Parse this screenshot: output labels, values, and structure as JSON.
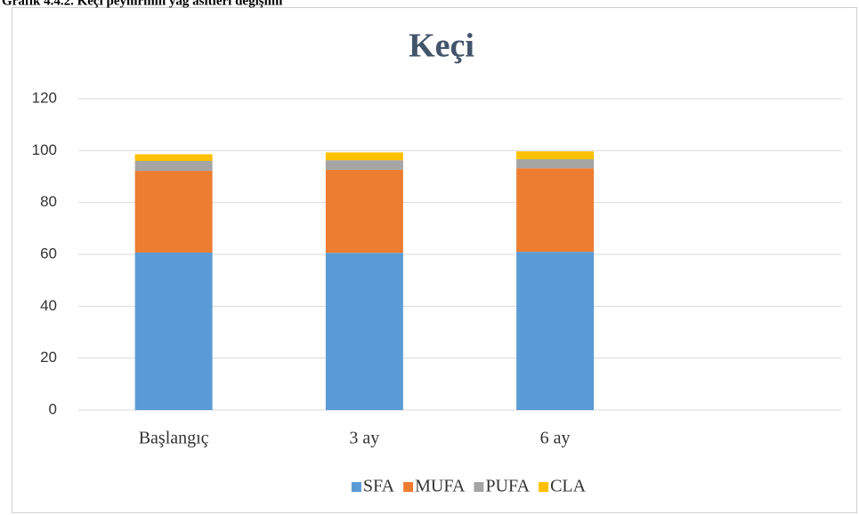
{
  "chart_data": {
    "type": "stacked_bar",
    "caption": "Grafik 4.4.2. Keçi peynirinin yağ asitleri değişimi",
    "title": "Keçi",
    "categories": [
      "Başlangıç",
      "3 ay",
      "6 ay",
      null
    ],
    "series": [
      {
        "name": "SFA",
        "color": "#5b9bd5",
        "values": [
          60.7,
          60.6,
          61.0,
          null
        ]
      },
      {
        "name": "MUFA",
        "color": "#ed7d31",
        "values": [
          31.5,
          32.0,
          32.2,
          null
        ]
      },
      {
        "name": "PUFA",
        "color": "#a5a5a5",
        "values": [
          3.8,
          3.7,
          3.5,
          null
        ]
      },
      {
        "name": "CLA",
        "color": "#ffc000",
        "values": [
          2.6,
          3.0,
          3.0,
          null
        ]
      }
    ],
    "ylim": [
      0,
      120
    ],
    "yticks": [
      0,
      20,
      40,
      60,
      80,
      100,
      120
    ],
    "grid": true,
    "legend": "bottom"
  }
}
